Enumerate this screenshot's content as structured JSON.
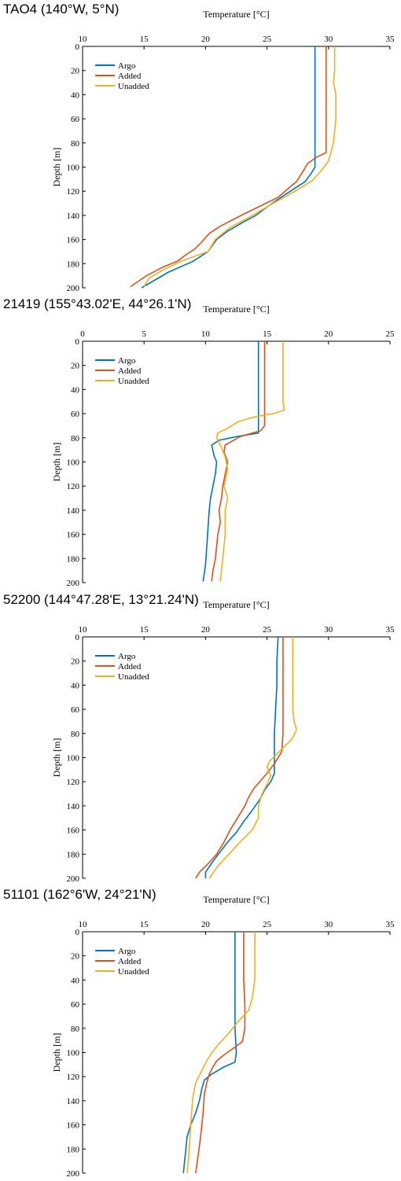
{
  "chart_data": [
    {
      "type": "line",
      "title": "TAO4 (140°W, 5°N)",
      "xlabel": "Temperature [°C]",
      "ylabel": "Depth [m]",
      "xlim": [
        10,
        35
      ],
      "ylim": [
        0,
        200
      ],
      "y_inverted": true,
      "x_axis_position": "top",
      "xticks": [
        10,
        15,
        20,
        25,
        30,
        35
      ],
      "yticks": [
        0,
        20,
        40,
        60,
        80,
        100,
        120,
        140,
        160,
        180,
        200
      ],
      "grid": false,
      "legend": "top-left",
      "series": [
        {
          "name": "Argo",
          "color": "#0072BD",
          "points": [
            [
              28.9,
              0
            ],
            [
              28.9,
              20
            ],
            [
              28.9,
              40
            ],
            [
              28.9,
              60
            ],
            [
              28.9,
              80
            ],
            [
              28.9,
              100
            ],
            [
              28.6,
              105
            ],
            [
              28.1,
              112
            ],
            [
              27.2,
              118
            ],
            [
              26.0,
              126
            ],
            [
              25.0,
              133
            ],
            [
              24.1,
              140
            ],
            [
              23.0,
              146
            ],
            [
              21.8,
              153
            ],
            [
              20.9,
              160
            ],
            [
              20.2,
              170
            ],
            [
              19.0,
              178
            ],
            [
              17.0,
              187
            ],
            [
              14.8,
              200
            ]
          ]
        },
        {
          "name": "Added",
          "color": "#D95319",
          "points": [
            [
              29.8,
              0
            ],
            [
              29.8,
              20
            ],
            [
              29.8,
              40
            ],
            [
              29.8,
              60
            ],
            [
              29.8,
              80
            ],
            [
              29.8,
              88
            ],
            [
              29.0,
              92
            ],
            [
              28.3,
              97
            ],
            [
              27.9,
              104
            ],
            [
              27.4,
              112
            ],
            [
              26.7,
              118
            ],
            [
              25.9,
              125
            ],
            [
              24.5,
              132
            ],
            [
              22.9,
              140
            ],
            [
              21.2,
              149
            ],
            [
              20.3,
              155
            ],
            [
              19.7,
              162
            ],
            [
              19.1,
              168
            ],
            [
              18.5,
              172
            ],
            [
              17.7,
              178
            ],
            [
              16.5,
              183
            ],
            [
              15.2,
              190
            ],
            [
              13.9,
              199
            ]
          ]
        },
        {
          "name": "Unadded",
          "color": "#EDB120",
          "points": [
            [
              30.5,
              0
            ],
            [
              30.5,
              10
            ],
            [
              30.5,
              20
            ],
            [
              30.4,
              30
            ],
            [
              30.6,
              40
            ],
            [
              30.6,
              60
            ],
            [
              30.4,
              80
            ],
            [
              30.0,
              95
            ],
            [
              29.4,
              103
            ],
            [
              28.7,
              111
            ],
            [
              27.6,
              118
            ],
            [
              26.6,
              124
            ],
            [
              25.5,
              130
            ],
            [
              23.8,
              140
            ],
            [
              22.0,
              150
            ],
            [
              20.8,
              160
            ],
            [
              20.2,
              170
            ],
            [
              18.0,
              178
            ],
            [
              16.4,
              186
            ],
            [
              15.4,
              192
            ],
            [
              15.0,
              199
            ]
          ]
        }
      ]
    },
    {
      "type": "line",
      "title": "21419 (155°43.02'E, 44°26.1'N)",
      "xlabel": "Temperature [°C]",
      "ylabel": "Depth [m]",
      "xlim": [
        0,
        25
      ],
      "ylim": [
        0,
        200
      ],
      "y_inverted": true,
      "x_axis_position": "top",
      "xticks": [
        0,
        5,
        10,
        15,
        20,
        25
      ],
      "yticks": [
        0,
        20,
        40,
        60,
        80,
        100,
        120,
        140,
        160,
        180,
        200
      ],
      "grid": false,
      "legend": "top-left",
      "series": [
        {
          "name": "Argo",
          "color": "#0072BD",
          "points": [
            [
              14.3,
              0
            ],
            [
              14.3,
              20
            ],
            [
              14.3,
              40
            ],
            [
              14.3,
              60
            ],
            [
              14.3,
              76
            ],
            [
              12.5,
              79
            ],
            [
              11.1,
              82
            ],
            [
              10.5,
              86
            ],
            [
              10.7,
              95
            ],
            [
              10.9,
              100
            ],
            [
              10.8,
              110
            ],
            [
              10.6,
              120
            ],
            [
              10.4,
              130
            ],
            [
              10.3,
              140
            ],
            [
              10.2,
              155
            ],
            [
              10.1,
              170
            ],
            [
              10.0,
              185
            ],
            [
              9.8,
              199
            ]
          ]
        },
        {
          "name": "Added",
          "color": "#D95319",
          "points": [
            [
              14.8,
              0
            ],
            [
              14.8,
              20
            ],
            [
              14.8,
              40
            ],
            [
              14.8,
              60
            ],
            [
              14.8,
              70
            ],
            [
              14.5,
              74
            ],
            [
              12.8,
              79
            ],
            [
              11.6,
              86
            ],
            [
              11.5,
              92
            ],
            [
              11.8,
              100
            ],
            [
              11.6,
              110
            ],
            [
              11.4,
              120
            ],
            [
              11.3,
              130
            ],
            [
              11.1,
              140
            ],
            [
              11.2,
              150
            ],
            [
              11.0,
              160
            ],
            [
              10.9,
              170
            ],
            [
              10.8,
              180
            ],
            [
              10.6,
              190
            ],
            [
              10.5,
              199
            ]
          ]
        },
        {
          "name": "Unadded",
          "color": "#EDB120",
          "points": [
            [
              16.3,
              0
            ],
            [
              16.3,
              20
            ],
            [
              16.3,
              40
            ],
            [
              16.3,
              50
            ],
            [
              16.4,
              57
            ],
            [
              15.5,
              60
            ],
            [
              14.3,
              62
            ],
            [
              13.5,
              64
            ],
            [
              12.6,
              67
            ],
            [
              11.8,
              72
            ],
            [
              11.0,
              76
            ],
            [
              10.9,
              80
            ],
            [
              11.3,
              88
            ],
            [
              11.6,
              96
            ],
            [
              11.8,
              106
            ],
            [
              11.5,
              120
            ],
            [
              11.8,
              130
            ],
            [
              11.6,
              140
            ],
            [
              11.6,
              160
            ],
            [
              11.4,
              180
            ],
            [
              11.2,
              199
            ]
          ]
        }
      ]
    },
    {
      "type": "line",
      "title": "52200 (144°47.28'E, 13°21.24'N)",
      "xlabel": "Temperature [°C]",
      "ylabel": "Depth [m]",
      "xlim": [
        10,
        35
      ],
      "ylim": [
        0,
        200
      ],
      "y_inverted": true,
      "x_axis_position": "top",
      "xticks": [
        10,
        15,
        20,
        25,
        30,
        35
      ],
      "yticks": [
        0,
        20,
        40,
        60,
        80,
        100,
        120,
        140,
        160,
        180,
        200
      ],
      "grid": false,
      "legend": "top-left",
      "series": [
        {
          "name": "Argo",
          "color": "#0072BD",
          "points": [
            [
              25.9,
              0
            ],
            [
              25.8,
              20
            ],
            [
              25.8,
              40
            ],
            [
              25.7,
              60
            ],
            [
              25.6,
              80
            ],
            [
              25.6,
              100
            ],
            [
              25.6,
              113
            ],
            [
              25.3,
              120
            ],
            [
              24.8,
              127
            ],
            [
              24.4,
              135
            ],
            [
              23.7,
              145
            ],
            [
              23.1,
              153
            ],
            [
              22.5,
              162
            ],
            [
              21.8,
              170
            ],
            [
              21.2,
              178
            ],
            [
              20.6,
              186
            ],
            [
              20.0,
              195
            ],
            [
              20.0,
              200
            ]
          ]
        },
        {
          "name": "Added",
          "color": "#D95319",
          "points": [
            [
              26.3,
              0
            ],
            [
              26.3,
              20
            ],
            [
              26.3,
              40
            ],
            [
              26.3,
              60
            ],
            [
              26.3,
              80
            ],
            [
              26.2,
              95
            ],
            [
              25.6,
              105
            ],
            [
              25.0,
              113
            ],
            [
              24.4,
              120
            ],
            [
              23.9,
              126
            ],
            [
              23.5,
              133
            ],
            [
              23.2,
              140
            ],
            [
              22.6,
              150
            ],
            [
              22.0,
              160
            ],
            [
              21.5,
              170
            ],
            [
              20.9,
              180
            ],
            [
              20.2,
              188
            ],
            [
              19.5,
              195
            ],
            [
              19.2,
              200
            ]
          ]
        },
        {
          "name": "Unadded",
          "color": "#EDB120",
          "points": [
            [
              27.1,
              0
            ],
            [
              27.1,
              20
            ],
            [
              27.1,
              40
            ],
            [
              27.1,
              60
            ],
            [
              27.2,
              70
            ],
            [
              27.4,
              77
            ],
            [
              27.0,
              85
            ],
            [
              26.3,
              92
            ],
            [
              25.7,
              98
            ],
            [
              25.2,
              103
            ],
            [
              25.0,
              108
            ],
            [
              25.3,
              115
            ],
            [
              25.0,
              122
            ],
            [
              24.6,
              130
            ],
            [
              24.3,
              140
            ],
            [
              24.3,
              150
            ],
            [
              23.8,
              160
            ],
            [
              22.8,
              170
            ],
            [
              21.9,
              180
            ],
            [
              21.0,
              190
            ],
            [
              20.3,
              200
            ]
          ]
        }
      ]
    },
    {
      "type": "line",
      "title": "51101 (162°6'W, 24°21'N)",
      "xlabel": "Temperature [°C]",
      "ylabel": "Depth [m]",
      "xlim": [
        10,
        35
      ],
      "ylim": [
        0,
        200
      ],
      "y_inverted": true,
      "x_axis_position": "top",
      "xticks": [
        10,
        15,
        20,
        25,
        30,
        35
      ],
      "yticks": [
        0,
        20,
        40,
        60,
        80,
        100,
        120,
        140,
        160,
        180,
        200
      ],
      "grid": false,
      "legend": "top-left",
      "series": [
        {
          "name": "Argo",
          "color": "#0072BD",
          "points": [
            [
              22.4,
              0
            ],
            [
              22.4,
              20
            ],
            [
              22.4,
              40
            ],
            [
              22.4,
              60
            ],
            [
              22.4,
              80
            ],
            [
              22.5,
              100
            ],
            [
              22.4,
              108
            ],
            [
              21.5,
              112
            ],
            [
              20.5,
              118
            ],
            [
              19.9,
              123
            ],
            [
              19.7,
              130
            ],
            [
              19.5,
              140
            ],
            [
              19.2,
              150
            ],
            [
              18.8,
              160
            ],
            [
              18.5,
              170
            ],
            [
              18.4,
              180
            ],
            [
              18.3,
              190
            ],
            [
              18.2,
              200
            ]
          ]
        },
        {
          "name": "Added",
          "color": "#D95319",
          "points": [
            [
              23.1,
              0
            ],
            [
              23.1,
              20
            ],
            [
              23.1,
              40
            ],
            [
              23.2,
              60
            ],
            [
              23.2,
              80
            ],
            [
              23.0,
              91
            ],
            [
              22.2,
              97
            ],
            [
              21.5,
              102
            ],
            [
              20.9,
              107
            ],
            [
              20.6,
              112
            ],
            [
              20.3,
              118
            ],
            [
              20.1,
              125
            ],
            [
              19.9,
              135
            ],
            [
              19.8,
              150
            ],
            [
              19.6,
              170
            ],
            [
              19.4,
              185
            ],
            [
              19.2,
              200
            ]
          ]
        },
        {
          "name": "Unadded",
          "color": "#EDB120",
          "points": [
            [
              24.0,
              0
            ],
            [
              24.0,
              20
            ],
            [
              24.0,
              40
            ],
            [
              23.8,
              55
            ],
            [
              23.5,
              65
            ],
            [
              22.6,
              75
            ],
            [
              21.8,
              85
            ],
            [
              20.9,
              95
            ],
            [
              20.2,
              105
            ],
            [
              19.7,
              115
            ],
            [
              19.2,
              125
            ],
            [
              19.0,
              135
            ],
            [
              18.9,
              145
            ],
            [
              18.8,
              160
            ],
            [
              18.7,
              175
            ],
            [
              18.6,
              190
            ],
            [
              18.5,
              200
            ]
          ]
        }
      ]
    }
  ]
}
